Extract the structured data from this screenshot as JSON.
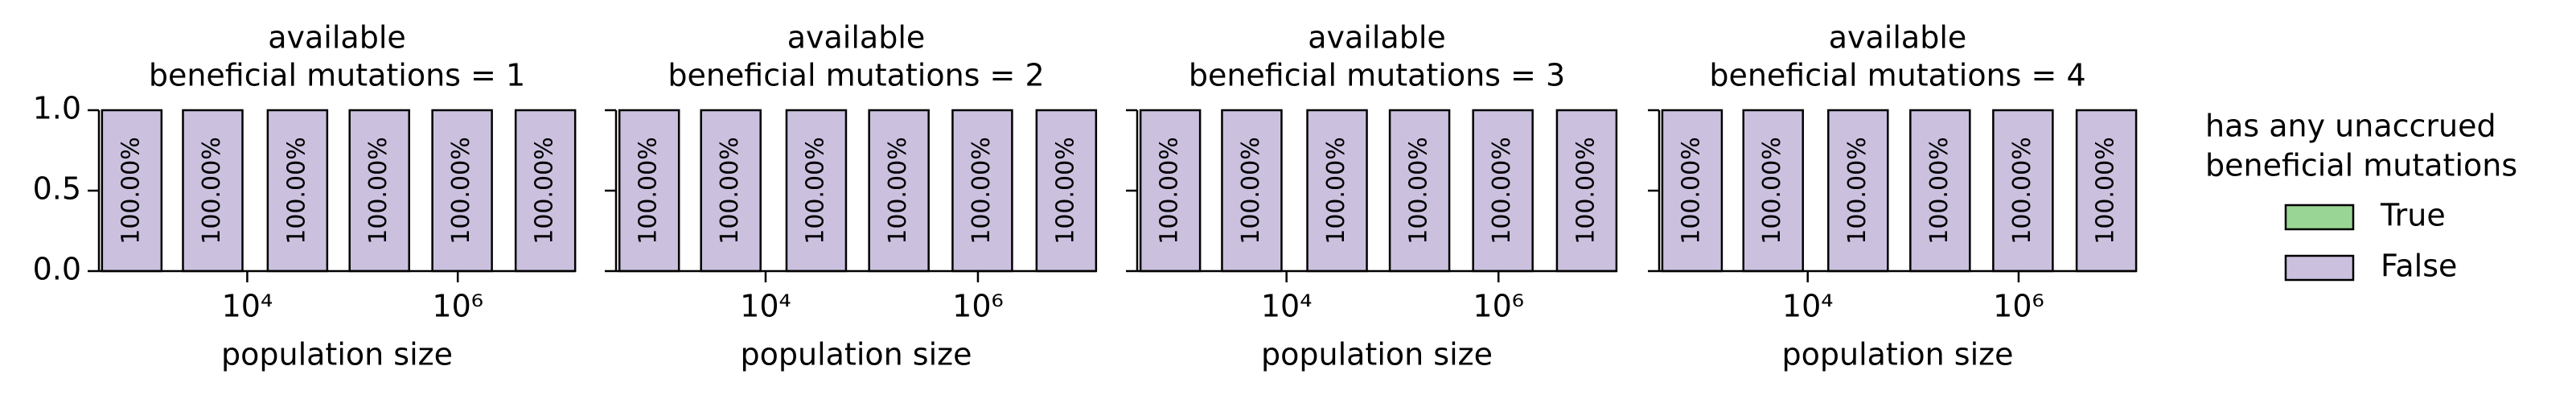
{
  "chart_data": [
    {
      "type": "bar",
      "stacked": true,
      "xscale": "log",
      "title": [
        "available",
        "beneficial mutations = 1"
      ],
      "xlabel": "population size",
      "legend_title": [
        "has any unaccrued",
        "beneficial mutations"
      ],
      "legend": "right",
      "x": [
        800,
        4700,
        30000,
        180000,
        1100000,
        6800000
      ],
      "series": [
        {
          "name": "True",
          "color": "#99d594",
          "values": [
            0,
            0,
            0,
            0,
            0,
            0
          ]
        },
        {
          "name": "False",
          "color": "#cbc1df",
          "values": [
            1,
            1,
            1,
            1,
            1,
            1
          ],
          "value_labels": [
            "100.00%",
            "100.00%",
            "100.00%",
            "100.00%",
            "100.00%",
            "100.00%"
          ]
        }
      ],
      "xlim": [
        390,
        13000000
      ],
      "xticks": [
        {
          "value": 10000,
          "label": "10⁴"
        },
        {
          "value": 1000000,
          "label": "10⁶"
        }
      ],
      "ylim": [
        0,
        1
      ],
      "yticks": [
        {
          "value": 0,
          "label": "0.0"
        },
        {
          "value": 0.5,
          "label": "0.5"
        },
        {
          "value": 1,
          "label": "1.0"
        }
      ]
    },
    {
      "type": "bar",
      "stacked": true,
      "xscale": "log",
      "title": [
        "available",
        "beneficial mutations = 2"
      ],
      "xlabel": "population size",
      "x": [
        800,
        4700,
        30000,
        180000,
        1100000,
        6800000
      ],
      "series": [
        {
          "name": "True",
          "color": "#99d594",
          "values": [
            0,
            0,
            0,
            0,
            0,
            0
          ]
        },
        {
          "name": "False",
          "color": "#cbc1df",
          "values": [
            1,
            1,
            1,
            1,
            1,
            1
          ],
          "value_labels": [
            "100.00%",
            "100.00%",
            "100.00%",
            "100.00%",
            "100.00%",
            "100.00%"
          ]
        }
      ],
      "xlim": [
        390,
        13000000
      ],
      "xticks": [
        {
          "value": 10000,
          "label": "10⁴"
        },
        {
          "value": 1000000,
          "label": "10⁶"
        }
      ]
    },
    {
      "type": "bar",
      "stacked": true,
      "xscale": "log",
      "title": [
        "available",
        "beneficial mutations = 3"
      ],
      "xlabel": "population size",
      "x": [
        800,
        4700,
        30000,
        180000,
        1100000,
        6800000
      ],
      "series": [
        {
          "name": "True",
          "color": "#99d594",
          "values": [
            0,
            0,
            0,
            0,
            0,
            0
          ]
        },
        {
          "name": "False",
          "color": "#cbc1df",
          "values": [
            1,
            1,
            1,
            1,
            1,
            1
          ],
          "value_labels": [
            "100.00%",
            "100.00%",
            "100.00%",
            "100.00%",
            "100.00%",
            "100.00%"
          ]
        }
      ],
      "xlim": [
        390,
        13000000
      ],
      "xticks": [
        {
          "value": 10000,
          "label": "10⁴"
        },
        {
          "value": 1000000,
          "label": "10⁶"
        }
      ]
    },
    {
      "type": "bar",
      "stacked": true,
      "xscale": "log",
      "title": [
        "available",
        "beneficial mutations = 4"
      ],
      "xlabel": "population size",
      "x": [
        800,
        4700,
        30000,
        180000,
        1100000,
        6800000
      ],
      "series": [
        {
          "name": "True",
          "color": "#99d594",
          "values": [
            0,
            0,
            0,
            0,
            0,
            0
          ]
        },
        {
          "name": "False",
          "color": "#cbc1df",
          "values": [
            1,
            1,
            1,
            1,
            1,
            1
          ],
          "value_labels": [
            "100.00%",
            "100.00%",
            "100.00%",
            "100.00%",
            "100.00%",
            "100.00%"
          ]
        }
      ],
      "xlim": [
        390,
        13000000
      ],
      "xticks": [
        {
          "value": 10000,
          "label": "10⁴"
        },
        {
          "value": 1000000,
          "label": "10⁶"
        }
      ]
    }
  ]
}
